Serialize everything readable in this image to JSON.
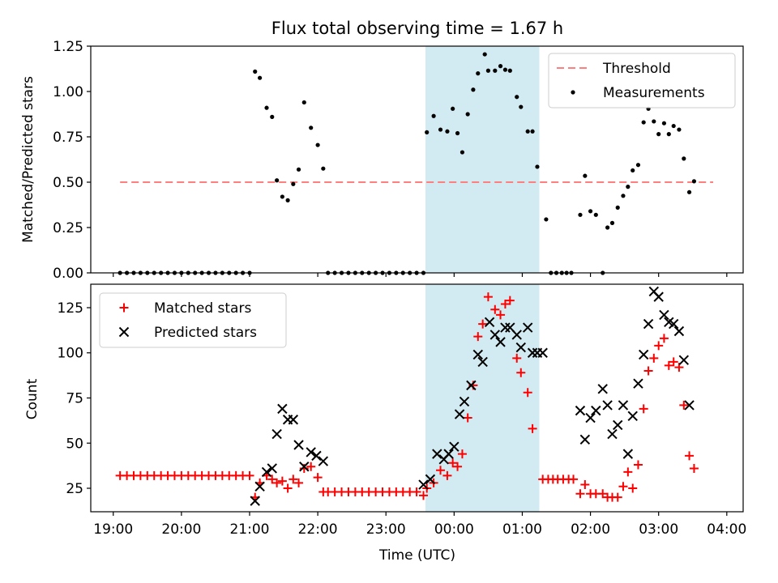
{
  "chart_data": [
    {
      "type": "scatter",
      "title": "Flux total observing time = 1.67 h",
      "xlabel": "",
      "ylabel": "Matched/Predicted stars",
      "xlim": [
        -0.33,
        9.24
      ],
      "ylim": [
        0.0,
        1.25
      ],
      "y_ticks": [
        0.0,
        0.25,
        0.5,
        0.75,
        1.0,
        1.25
      ],
      "y_tick_labels": [
        "0.00",
        "0.25",
        "0.50",
        "0.75",
        "1.00",
        "1.25"
      ],
      "x_ticks": [
        0,
        1,
        2,
        3,
        4,
        5,
        6,
        7,
        8,
        9
      ],
      "x_tick_labels": [
        "",
        "",
        "",
        "",
        "",
        "",
        "",
        "",
        "",
        ""
      ],
      "grid": false,
      "legend": "top-right",
      "shaded_region": {
        "x": [
          4.58,
          6.25
        ],
        "color": "#add8e6"
      },
      "threshold": {
        "name": "Threshold",
        "y": 0.5,
        "x": [
          0.1,
          8.8
        ],
        "color": "#ff7f7f",
        "style": "dashed"
      },
      "series": [
        {
          "name": "Measurements",
          "color": "#000000",
          "marker": "dot",
          "points": [
            [
              0.1,
              0
            ],
            [
              0.2,
              0
            ],
            [
              0.3,
              0
            ],
            [
              0.4,
              0
            ],
            [
              0.5,
              0
            ],
            [
              0.6,
              0
            ],
            [
              0.7,
              0
            ],
            [
              0.8,
              0
            ],
            [
              0.9,
              0
            ],
            [
              1.0,
              0
            ],
            [
              1.1,
              0
            ],
            [
              1.2,
              0
            ],
            [
              1.3,
              0
            ],
            [
              1.4,
              0
            ],
            [
              1.5,
              0
            ],
            [
              1.6,
              0
            ],
            [
              1.7,
              0
            ],
            [
              1.8,
              0
            ],
            [
              1.9,
              0
            ],
            [
              2.0,
              0
            ],
            [
              2.08,
              1.11
            ],
            [
              2.15,
              1.075
            ],
            [
              2.25,
              0.91
            ],
            [
              2.33,
              0.86
            ],
            [
              2.4,
              0.51
            ],
            [
              2.48,
              0.42
            ],
            [
              2.56,
              0.4
            ],
            [
              2.64,
              0.49
            ],
            [
              2.72,
              0.57
            ],
            [
              2.8,
              0.94
            ],
            [
              2.9,
              0.8
            ],
            [
              3.0,
              0.705
            ],
            [
              3.08,
              0.575
            ],
            [
              3.15,
              0
            ],
            [
              3.25,
              0
            ],
            [
              3.35,
              0
            ],
            [
              3.45,
              0
            ],
            [
              3.55,
              0
            ],
            [
              3.65,
              0
            ],
            [
              3.75,
              0
            ],
            [
              3.85,
              0
            ],
            [
              3.95,
              0
            ],
            [
              4.05,
              0
            ],
            [
              4.15,
              0
            ],
            [
              4.25,
              0
            ],
            [
              4.35,
              0
            ],
            [
              4.45,
              0
            ],
            [
              4.55,
              0
            ],
            [
              4.6,
              0.775
            ],
            [
              4.7,
              0.865
            ],
            [
              4.8,
              0.79
            ],
            [
              4.9,
              0.78
            ],
            [
              4.98,
              0.905
            ],
            [
              5.05,
              0.77
            ],
            [
              5.12,
              0.665
            ],
            [
              5.2,
              0.875
            ],
            [
              5.28,
              1.01
            ],
            [
              5.35,
              1.1
            ],
            [
              5.45,
              1.205
            ],
            [
              5.5,
              1.115
            ],
            [
              5.6,
              1.115
            ],
            [
              5.68,
              1.14
            ],
            [
              5.75,
              1.12
            ],
            [
              5.82,
              1.115
            ],
            [
              5.92,
              0.97
            ],
            [
              5.98,
              0.915
            ],
            [
              6.08,
              0.78
            ],
            [
              6.15,
              0.78
            ],
            [
              6.22,
              0.585
            ],
            [
              6.35,
              0.295
            ],
            [
              6.42,
              0
            ],
            [
              6.5,
              0
            ],
            [
              6.58,
              0
            ],
            [
              6.65,
              0
            ],
            [
              6.72,
              0
            ],
            [
              6.85,
              0.32
            ],
            [
              6.92,
              0.535
            ],
            [
              7.0,
              0.34
            ],
            [
              7.08,
              0.32
            ],
            [
              7.18,
              0
            ],
            [
              7.25,
              0.25
            ],
            [
              7.32,
              0.275
            ],
            [
              7.4,
              0.36
            ],
            [
              7.48,
              0.425
            ],
            [
              7.55,
              0.475
            ],
            [
              7.62,
              0.565
            ],
            [
              7.7,
              0.595
            ],
            [
              7.78,
              0.83
            ],
            [
              7.85,
              0.905
            ],
            [
              7.93,
              0.835
            ],
            [
              8.0,
              0.765
            ],
            [
              8.08,
              0.825
            ],
            [
              8.15,
              0.765
            ],
            [
              8.22,
              0.81
            ],
            [
              8.3,
              0.79
            ],
            [
              8.37,
              0.63
            ],
            [
              8.45,
              0.445
            ],
            [
              8.52,
              0.505
            ]
          ]
        }
      ]
    },
    {
      "type": "scatter",
      "title": "",
      "xlabel": "Time (UTC)",
      "ylabel": "Count",
      "xlim": [
        -0.33,
        9.24
      ],
      "ylim": [
        12,
        138
      ],
      "y_ticks": [
        25,
        50,
        75,
        100,
        125
      ],
      "y_tick_labels": [
        "25",
        "50",
        "75",
        "100",
        "125"
      ],
      "x_ticks": [
        0,
        1,
        2,
        3,
        4,
        5,
        6,
        7,
        8,
        9
      ],
      "x_tick_labels": [
        "19:00",
        "20:00",
        "21:00",
        "22:00",
        "23:00",
        "00:00",
        "01:00",
        "02:00",
        "03:00",
        "04:00"
      ],
      "grid": false,
      "legend": "top-left",
      "shaded_region": {
        "x": [
          4.58,
          6.25
        ],
        "color": "#add8e6"
      },
      "series": [
        {
          "name": "Matched stars",
          "color": "#ff0000",
          "marker": "plus",
          "points": [
            [
              0.1,
              32
            ],
            [
              0.2,
              32
            ],
            [
              0.3,
              32
            ],
            [
              0.4,
              32
            ],
            [
              0.5,
              32
            ],
            [
              0.6,
              32
            ],
            [
              0.7,
              32
            ],
            [
              0.8,
              32
            ],
            [
              0.9,
              32
            ],
            [
              1.0,
              32
            ],
            [
              1.1,
              32
            ],
            [
              1.2,
              32
            ],
            [
              1.3,
              32
            ],
            [
              1.4,
              32
            ],
            [
              1.5,
              32
            ],
            [
              1.6,
              32
            ],
            [
              1.7,
              32
            ],
            [
              1.8,
              32
            ],
            [
              1.9,
              32
            ],
            [
              2.0,
              32
            ],
            [
              2.08,
              20
            ],
            [
              2.15,
              28
            ],
            [
              2.25,
              32
            ],
            [
              2.33,
              30
            ],
            [
              2.4,
              28
            ],
            [
              2.48,
              29
            ],
            [
              2.56,
              25
            ],
            [
              2.64,
              30
            ],
            [
              2.72,
              28
            ],
            [
              2.8,
              36
            ],
            [
              2.9,
              37
            ],
            [
              3.0,
              31
            ],
            [
              3.08,
              23
            ],
            [
              3.15,
              23
            ],
            [
              3.25,
              23
            ],
            [
              3.35,
              23
            ],
            [
              3.45,
              23
            ],
            [
              3.55,
              23
            ],
            [
              3.65,
              23
            ],
            [
              3.75,
              23
            ],
            [
              3.85,
              23
            ],
            [
              3.95,
              23
            ],
            [
              4.05,
              23
            ],
            [
              4.15,
              23
            ],
            [
              4.25,
              23
            ],
            [
              4.35,
              23
            ],
            [
              4.45,
              23
            ],
            [
              4.55,
              21
            ],
            [
              4.6,
              25
            ],
            [
              4.7,
              28
            ],
            [
              4.8,
              35
            ],
            [
              4.9,
              32
            ],
            [
              4.98,
              39
            ],
            [
              5.05,
              37
            ],
            [
              5.12,
              44
            ],
            [
              5.2,
              64
            ],
            [
              5.28,
              82
            ],
            [
              5.35,
              109
            ],
            [
              5.42,
              116
            ],
            [
              5.5,
              131
            ],
            [
              5.6,
              124
            ],
            [
              5.68,
              121
            ],
            [
              5.75,
              127
            ],
            [
              5.82,
              129
            ],
            [
              5.92,
              97
            ],
            [
              5.98,
              89
            ],
            [
              6.08,
              78
            ],
            [
              6.15,
              58
            ],
            [
              6.3,
              30
            ],
            [
              6.38,
              30
            ],
            [
              6.45,
              30
            ],
            [
              6.52,
              30
            ],
            [
              6.6,
              30
            ],
            [
              6.68,
              30
            ],
            [
              6.75,
              30
            ],
            [
              6.85,
              22
            ],
            [
              6.92,
              27
            ],
            [
              7.0,
              22
            ],
            [
              7.08,
              22
            ],
            [
              7.18,
              22
            ],
            [
              7.25,
              20
            ],
            [
              7.32,
              20
            ],
            [
              7.4,
              20
            ],
            [
              7.48,
              26
            ],
            [
              7.55,
              34
            ],
            [
              7.62,
              25
            ],
            [
              7.7,
              38
            ],
            [
              7.78,
              69
            ],
            [
              7.85,
              90
            ],
            [
              7.93,
              97
            ],
            [
              8.0,
              104
            ],
            [
              8.08,
              108
            ],
            [
              8.15,
              93
            ],
            [
              8.22,
              95
            ],
            [
              8.3,
              92
            ],
            [
              8.37,
              71
            ],
            [
              8.45,
              43
            ],
            [
              8.52,
              36
            ]
          ]
        },
        {
          "name": "Predicted stars",
          "color": "#000000",
          "marker": "x",
          "points": [
            [
              2.08,
              18
            ],
            [
              2.15,
              26
            ],
            [
              2.25,
              34
            ],
            [
              2.33,
              36
            ],
            [
              2.4,
              55
            ],
            [
              2.48,
              69
            ],
            [
              2.56,
              63
            ],
            [
              2.64,
              63
            ],
            [
              2.72,
              49
            ],
            [
              2.8,
              37
            ],
            [
              2.9,
              45
            ],
            [
              2.98,
              43
            ],
            [
              3.08,
              40
            ],
            [
              4.55,
              27
            ],
            [
              4.65,
              30
            ],
            [
              4.75,
              44
            ],
            [
              4.85,
              41
            ],
            [
              4.92,
              44
            ],
            [
              5.0,
              48
            ],
            [
              5.08,
              66
            ],
            [
              5.15,
              73
            ],
            [
              5.25,
              82
            ],
            [
              5.35,
              99
            ],
            [
              5.42,
              95
            ],
            [
              5.52,
              117
            ],
            [
              5.6,
              110
            ],
            [
              5.68,
              106
            ],
            [
              5.75,
              114
            ],
            [
              5.82,
              114
            ],
            [
              5.92,
              110
            ],
            [
              5.98,
              103
            ],
            [
              6.08,
              114
            ],
            [
              6.15,
              100
            ],
            [
              6.22,
              100
            ],
            [
              6.3,
              100
            ],
            [
              6.85,
              68
            ],
            [
              6.92,
              52
            ],
            [
              7.0,
              64
            ],
            [
              7.08,
              68
            ],
            [
              7.18,
              80
            ],
            [
              7.25,
              71
            ],
            [
              7.32,
              55
            ],
            [
              7.4,
              60
            ],
            [
              7.48,
              71
            ],
            [
              7.55,
              44
            ],
            [
              7.62,
              65
            ],
            [
              7.7,
              83
            ],
            [
              7.78,
              99
            ],
            [
              7.85,
              116
            ],
            [
              7.93,
              134
            ],
            [
              8.0,
              131
            ],
            [
              8.08,
              121
            ],
            [
              8.15,
              117
            ],
            [
              8.22,
              116
            ],
            [
              8.3,
              112
            ],
            [
              8.37,
              96
            ],
            [
              8.45,
              71
            ]
          ]
        }
      ]
    }
  ]
}
